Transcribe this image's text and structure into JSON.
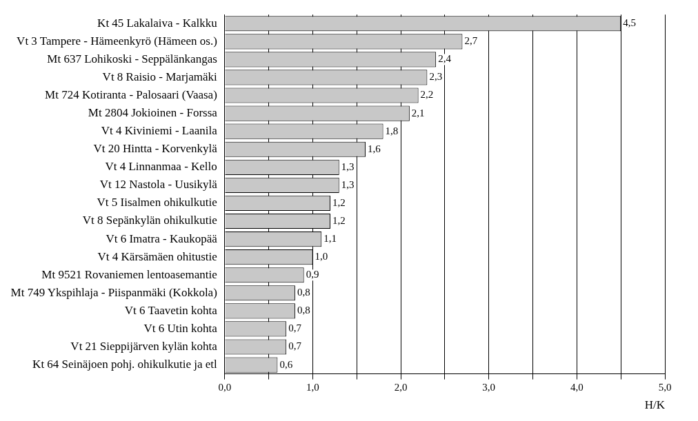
{
  "chart_data": {
    "type": "bar",
    "orientation": "horizontal",
    "xlabel": "H/K",
    "categories": [
      "Kt 45 Lakalaiva - Kalkku",
      "Vt 3 Tampere - Hämeenkyrö (Hämeen os.)",
      "Mt 637 Lohikoski - Seppälänkangas",
      "Vt 8 Raisio - Marjamäki",
      "Mt 724 Kotiranta - Palosaari (Vaasa)",
      "Mt 2804 Jokioinen - Forssa",
      "Vt 4 Kiviniemi - Laanila",
      "Vt 20 Hintta - Korvenkylä",
      "Vt 4 Linnanmaa - Kello",
      "Vt 12 Nastola - Uusikylä",
      "Vt 5 Iisalmen ohikulkutie",
      "Vt 8 Sepänkylän ohikulkutie",
      "Vt 6 Imatra - Kaukopää",
      "Vt 4 Kärsämäen ohitustie",
      "Mt 9521 Rovaniemen lentoasemantie",
      "Mt 749 Ykspihlaja - Piispanmäki (Kokkola)",
      "Vt 6 Taavetin kohta",
      "Vt 6 Utin kohta",
      "Vt 21 Sieppijärven kylän kohta",
      "Kt 64 Seinäjoen pohj. ohikulkutie ja etl"
    ],
    "values": [
      4.5,
      2.7,
      2.4,
      2.3,
      2.2,
      2.1,
      1.8,
      1.6,
      1.3,
      1.3,
      1.2,
      1.2,
      1.1,
      1.0,
      0.9,
      0.8,
      0.8,
      0.7,
      0.7,
      0.6
    ],
    "value_labels": [
      "4,5",
      "2,7",
      "2,4",
      "2,3",
      "2,2",
      "2,1",
      "1,8",
      "1,6",
      "1,3",
      "1,3",
      "1,2",
      "1,2",
      "1,1",
      "1,0",
      "0,9",
      "0,8",
      "0,8",
      "0,7",
      "0,7",
      "0,6"
    ],
    "color": "#c8c8c8",
    "xlim": [
      0,
      5
    ],
    "xticks": [
      {
        "value": 0,
        "label": "0,0"
      },
      {
        "value": 0.5,
        "label": null
      },
      {
        "value": 1,
        "label": "1,0"
      },
      {
        "value": 1.5,
        "label": null
      },
      {
        "value": 2,
        "label": "2,0"
      },
      {
        "value": 2.5,
        "label": null
      },
      {
        "value": 3,
        "label": "3,0"
      },
      {
        "value": 3.5,
        "label": null
      },
      {
        "value": 4,
        "label": "4,0"
      },
      {
        "value": 4.5,
        "label": null
      },
      {
        "value": 5,
        "label": "5,0"
      }
    ],
    "grid": "x",
    "legend": false
  }
}
